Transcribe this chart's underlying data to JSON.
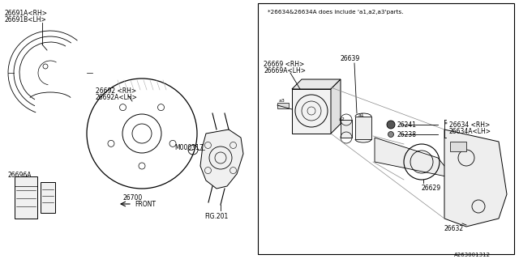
{
  "bg_color": "#ffffff",
  "lc": "#000000",
  "note": "*26634&26634A does include 'a1,a2,a3'parts.",
  "diagram_id": "A263001312",
  "fs": 5.5,
  "labels": {
    "26691A": "26691A<RH>",
    "26691B": "26691B<LH>",
    "26692": "26692 <RH>",
    "26692A": "26692A<LH>",
    "26669": "26669 <RH>",
    "26669A": "26669A<LH>",
    "26639": "26639",
    "26241": "26241",
    "26238": "26238",
    "26634": "26634 <RH>",
    "26634A": "26634A<LH>",
    "26629": "26629",
    "26632": "26632",
    "26696A": "26696A",
    "26700": "26700",
    "M000317": "M000317",
    "FIG201": "FIG.201",
    "a1": "a1",
    "a2": "a2",
    "a3": "a3",
    "FRONT": "FRONT"
  }
}
